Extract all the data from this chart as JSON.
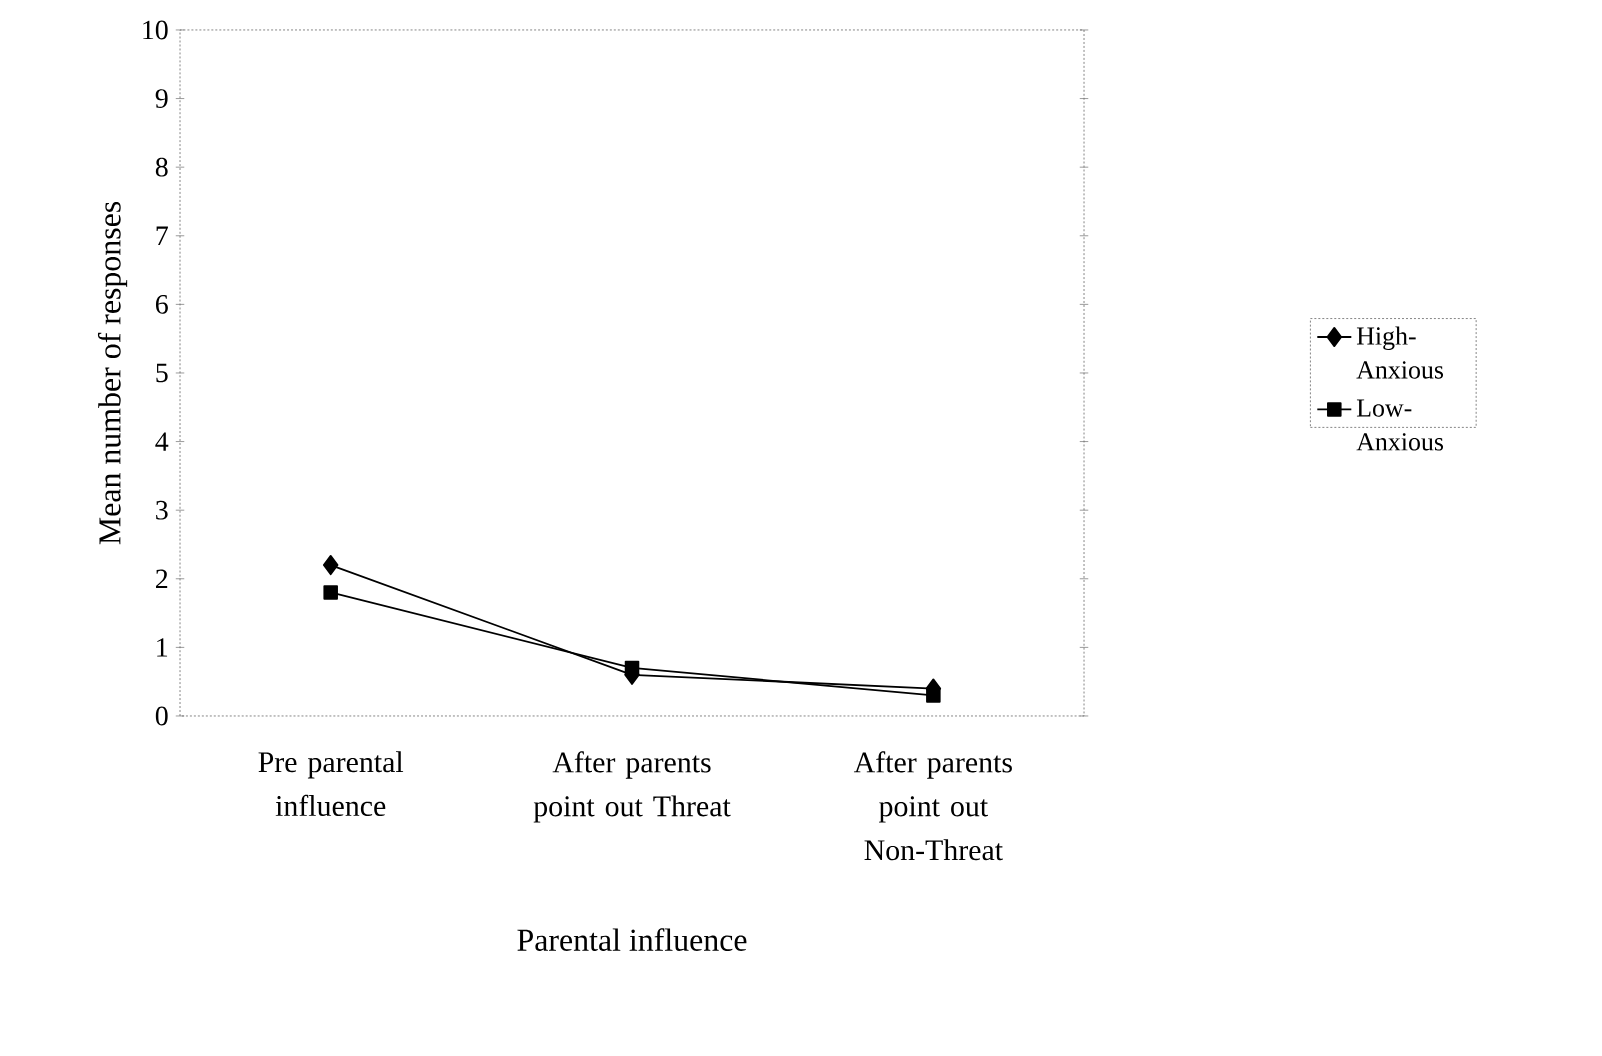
{
  "chart_data": {
    "type": "line",
    "xlabel": "Parental influence",
    "ylabel": "Mean number of responses",
    "categories": [
      "Pre parental influence",
      "After parents point out Threat",
      "After parents point out Non-Threat"
    ],
    "ylim": [
      0,
      10
    ],
    "yticks": [
      0,
      1,
      2,
      3,
      4,
      5,
      6,
      7,
      8,
      9,
      10
    ],
    "legend": "right",
    "grid": false,
    "series": [
      {
        "name": "High-Anxious",
        "color": "#000000",
        "marker": "diamond",
        "values": [
          2.2,
          0.6,
          0.4
        ]
      },
      {
        "name": "Low-Anxious",
        "color": "#000000",
        "marker": "square",
        "values": [
          1.8,
          0.7,
          0.3
        ]
      }
    ]
  }
}
